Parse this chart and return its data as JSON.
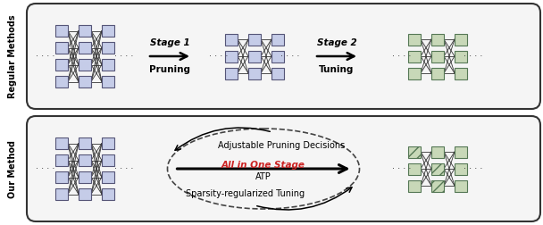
{
  "fig_width": 6.08,
  "fig_height": 2.52,
  "dpi": 100,
  "bg_color": "#ffffff",
  "node_blue": "#c5cce8",
  "node_green": "#c8d8b8",
  "node_blue_edge": "#555577",
  "node_green_edge": "#557755",
  "label_top": "Regular Methods",
  "label_bot": "Our Method",
  "arrow_stage1_text1": "Stage 1",
  "arrow_stage1_text2": "Pruning",
  "arrow_stage2_text1": "Stage 2",
  "arrow_stage2_text2": "Tuning",
  "center_text1": "Adjustable Pruning Decisions",
  "center_text2": "All in One Stage",
  "center_text3": "ATP",
  "center_text4": "Sparsity-regularized Tuning",
  "center_text2_color": "#cc2222",
  "panel_fc": "#f5f5f5",
  "panel_ec": "#333333"
}
